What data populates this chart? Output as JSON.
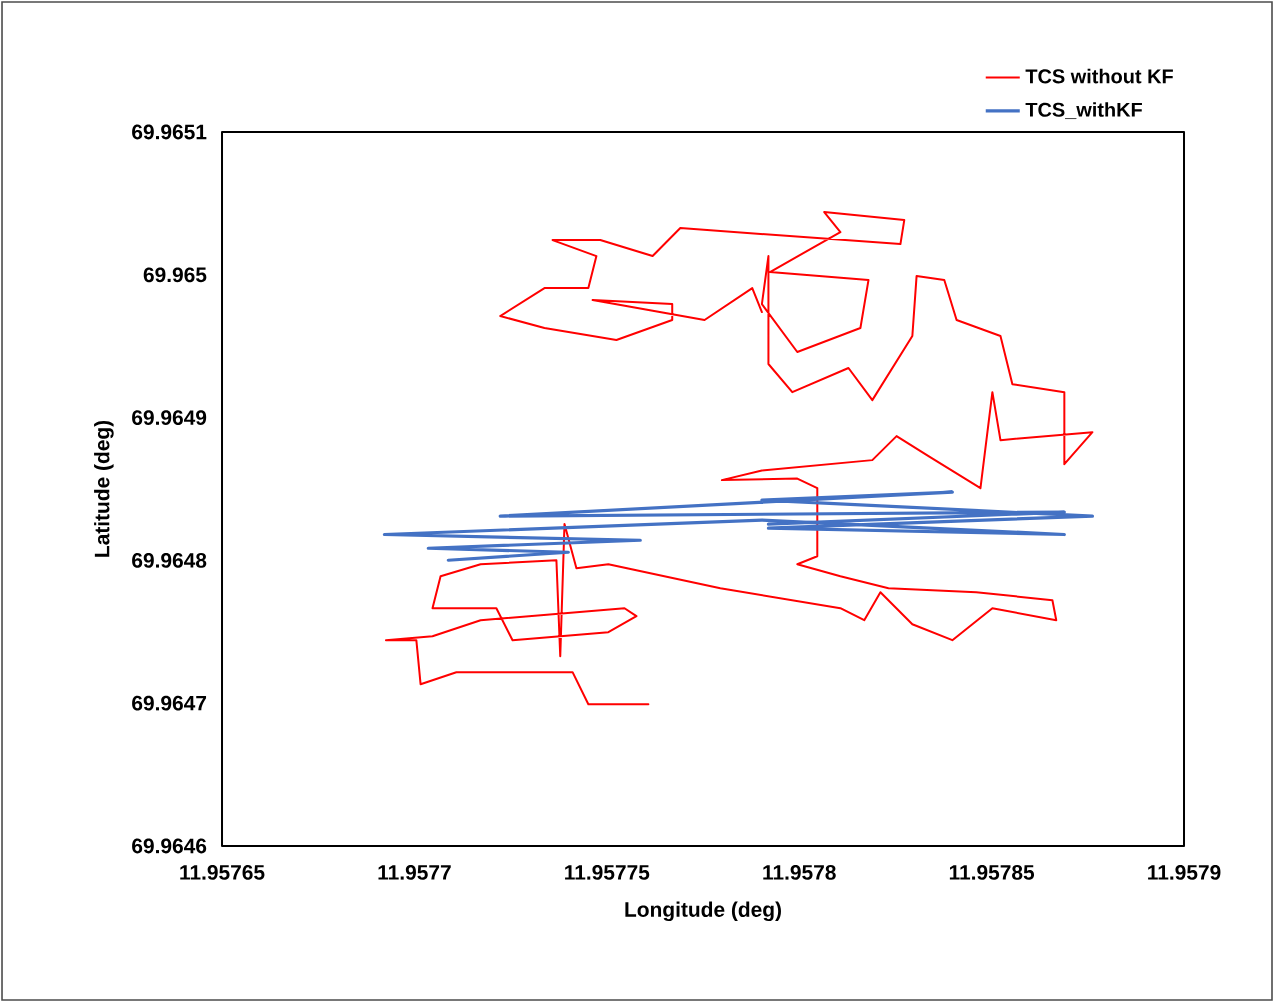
{
  "chart_data": {
    "type": "line",
    "xlabel": "Longitude (deg)",
    "ylabel": "Latitude (deg)",
    "xlim": [
      11.95765,
      11.9579
    ],
    "xticks": [
      11.95765,
      11.9577,
      11.95775,
      11.9578,
      11.95785,
      11.9579
    ],
    "ylim": [
      69.9646,
      69.9651
    ],
    "yticks": [
      69.9646,
      69.9647,
      69.9648,
      69.9649,
      69.965,
      69.9651
    ],
    "legend": "top right",
    "series": [
      {
        "name": "TCS without KF",
        "color": "#ff0000",
        "x": [
          11.9577608,
          11.9577452,
          11.9577411,
          11.9577109,
          11.9577016,
          11.9577005,
          11.9576926,
          11.9577047,
          11.9577172,
          11.9577546,
          11.9577577,
          11.9577504,
          11.9577255,
          11.9577213,
          11.9577047,
          11.9577068,
          11.9577172,
          11.9577369,
          11.9577379,
          11.957739,
          11.9577421,
          11.9577504,
          11.9577795,
          11.9578107,
          11.9578169,
          11.9578211,
          11.9578294,
          11.9578398,
          11.9578502,
          11.9578668,
          11.9578658,
          11.957846,
          11.9578232,
          11.9578107,
          11.9577995,
          11.9578047,
          11.9578047,
          11.9577995,
          11.9577799,
          11.9577903,
          11.957819,
          11.9578253,
          11.9578336,
          11.9578471,
          11.9578502,
          11.9578523,
          11.9578762,
          11.9578689,
          11.9578689,
          11.9578554,
          11.9578523,
          11.9578409,
          11.9578377,
          11.9578305,
          11.9578294,
          11.957819,
          11.9578128,
          11.9577982,
          11.957792,
          11.957792,
          11.9577903,
          11.9577995,
          11.9578159,
          11.957818,
          11.9577924,
          11.9578107,
          11.9578065,
          11.9578273,
          11.9578263,
          11.9577691,
          11.9577619,
          11.9577483,
          11.9577359,
          11.9577473,
          11.9577452,
          11.9577338,
          11.9577223,
          11.9577338,
          11.9577525,
          11.957767,
          11.957767,
          11.9577463,
          11.9577754,
          11.9577878,
          11.9577903
        ],
        "values": [
          69.9646992,
          69.9646992,
          69.9647217,
          69.9647217,
          69.9647133,
          69.9647441,
          69.9647441,
          69.9647469,
          69.9647581,
          69.9647665,
          69.9647609,
          69.9647497,
          69.9647441,
          69.9647665,
          69.9647665,
          69.9647889,
          69.9647973,
          69.9648001,
          69.9647329,
          69.9648254,
          69.9647945,
          69.9647973,
          69.9647805,
          69.9647665,
          69.9647581,
          69.9647777,
          69.9647553,
          69.9647441,
          69.9647665,
          69.9647581,
          69.9647721,
          69.9647777,
          69.9647805,
          69.9647889,
          69.9647973,
          69.9648029,
          69.9648506,
          69.9648573,
          69.9648562,
          69.9648629,
          69.9648702,
          69.964887,
          69.964873,
          69.9648506,
          69.9649178,
          69.9648842,
          69.9648898,
          69.9648674,
          69.9649178,
          69.9649234,
          69.9649571,
          69.9649683,
          69.9649963,
          69.9649991,
          69.9649571,
          69.9649122,
          69.9649347,
          69.9649178,
          69.9649375,
          69.9650131,
          69.9649795,
          69.9649459,
          69.9649627,
          69.9649963,
          69.9650019,
          69.9650299,
          69.9650439,
          69.9650383,
          69.9650215,
          69.9650327,
          69.9650131,
          69.9650243,
          69.9650243,
          69.9650131,
          69.9649907,
          69.9649907,
          69.9649711,
          69.9649627,
          69.9649543,
          69.9649683,
          69.9649795,
          69.9649823,
          69.9649683,
          69.9649907,
          69.9649739
        ]
      },
      {
        "name": "TCS_withKF",
        "color": "#4472c4",
        "x": [
          11.9577088,
          11.95774,
          11.9577036,
          11.9577587,
          11.9576922,
          11.9577903,
          11.9578689,
          11.957792,
          11.9578762,
          11.9577903,
          11.9578398,
          11.9577223,
          11.9578689,
          11.957792
        ],
        "values": [
          69.9648001,
          69.9648057,
          69.9648085,
          69.9648141,
          69.9648181,
          69.9648282,
          69.9648181,
          69.9648226,
          69.964831,
          69.9648422,
          69.9648478,
          69.964831,
          69.9648338,
          69.9648254
        ]
      }
    ]
  }
}
